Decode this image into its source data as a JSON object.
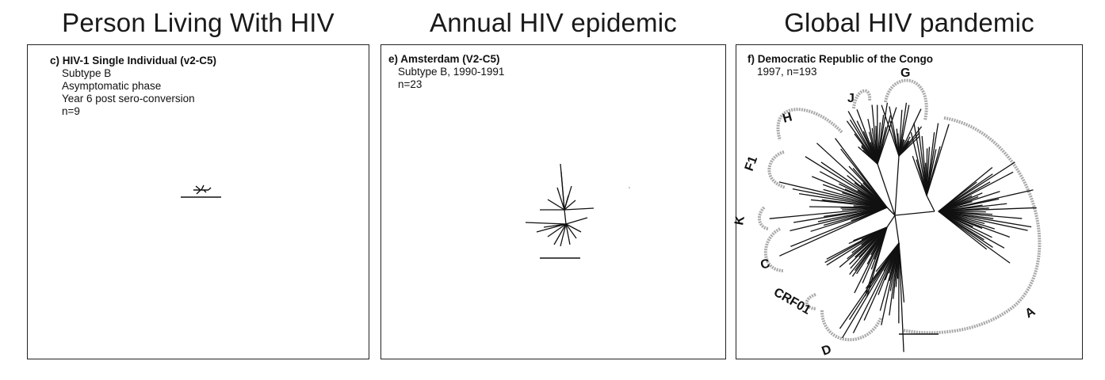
{
  "headings": [
    "Person Living With HIV",
    "Annual HIV epidemic",
    "Global HIV pandemic"
  ],
  "panels": [
    {
      "title": "c) HIV-1 Single Individual (v2-C5)",
      "lines": [
        "Subtype B",
        "Asymptomatic phase",
        "Year 6 post sero-conversion",
        "n=9"
      ]
    },
    {
      "title": "e) Amsterdam (V2-C5)",
      "lines": [
        "Subtype B, 1990-1991",
        "n=23"
      ]
    },
    {
      "title": "f) Democratic Republic of the Congo",
      "lines": [
        "1997, n=193"
      ],
      "clades": [
        "H",
        "J",
        "G",
        "F1",
        "K",
        "C",
        "CRF01",
        "D",
        "A"
      ]
    }
  ]
}
